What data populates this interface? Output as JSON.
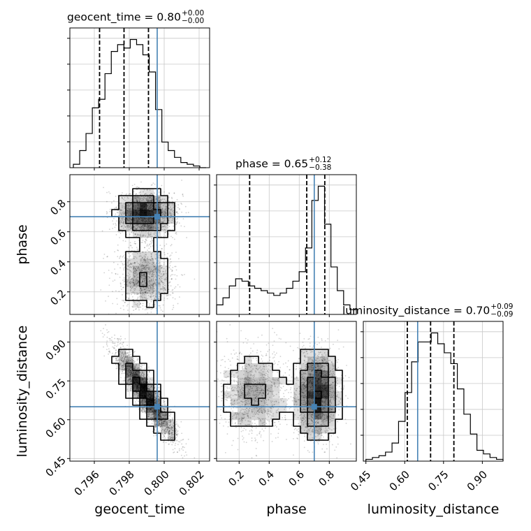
{
  "chart_data": {
    "type": "corner",
    "parameters": [
      "geocent_time",
      "phase",
      "luminosity_distance"
    ],
    "truth": {
      "geocent_time": 0.7996,
      "phase": 0.7,
      "luminosity_distance": 0.65
    },
    "ranges": {
      "geocent_time": [
        0.7946,
        0.8026
      ],
      "phase": [
        0.05,
        0.98
      ],
      "luminosity_distance": [
        0.44,
        0.98
      ]
    },
    "ticks": {
      "geocent_time": [
        0.796,
        0.798,
        0.8,
        0.802
      ],
      "phase": [
        0.2,
        0.4,
        0.6,
        0.8
      ],
      "luminosity_distance": [
        0.45,
        0.6,
        0.75,
        0.9
      ]
    },
    "tick_labels": {
      "geocent_time": [
        "0.796",
        "0.798",
        "0.800",
        "0.802"
      ],
      "phase": [
        "0.2",
        "0.4",
        "0.6",
        "0.8"
      ],
      "luminosity_distance": [
        "0.45",
        "0.60",
        "0.75",
        "0.90"
      ]
    },
    "axis_labels": {
      "geocent_time": "geocent_time",
      "phase": "phase",
      "luminosity_distance": "luminosity_distance"
    },
    "titles": [
      {
        "param": "geocent_time",
        "label": "geocent_time = 0.80",
        "plus": "+0.00",
        "minus": "−0.00"
      },
      {
        "param": "phase",
        "label": "phase = 0.65",
        "plus": "+0.12",
        "minus": "−0.38"
      },
      {
        "param": "luminosity_distance",
        "label": "luminosity_distance = 0.70",
        "plus": "+0.09",
        "minus": "−0.09"
      }
    ],
    "quantiles": {
      "geocent_time": [
        0.7963,
        0.7977,
        0.7991
      ],
      "phase": [
        0.27,
        0.65,
        0.77
      ],
      "luminosity_distance": [
        0.61,
        0.7,
        0.79
      ]
    },
    "histograms": {
      "geocent_time": {
        "edges_min": 0.7948,
        "edges_max": 0.8024,
        "counts": [
          2,
          10,
          20,
          35,
          40,
          55,
          68,
          72,
          70,
          75,
          72,
          66,
          56,
          34,
          15,
          10,
          6,
          3,
          2,
          1,
          0
        ]
      },
      "phase": {
        "edges_min": 0.05,
        "edges_max": 0.98,
        "counts": [
          4,
          7,
          12,
          15,
          14,
          12,
          11,
          10,
          9,
          8,
          9,
          11,
          14,
          18,
          28,
          48,
          54,
          38,
          20,
          10,
          4,
          2
        ]
      },
      "luminosity_distance": {
        "edges_min": 0.45,
        "edges_max": 0.98,
        "counts": [
          1,
          2,
          3,
          5,
          10,
          22,
          38,
          55,
          66,
          66,
          71,
          65,
          60,
          54,
          40,
          26,
          15,
          6,
          4,
          2,
          1
        ]
      }
    },
    "series": [
      {
        "x": "geocent_time",
        "y": "phase",
        "relation": "bimodal-phase"
      },
      {
        "x": "geocent_time",
        "y": "luminosity_distance",
        "relation": "anti-correlated"
      },
      {
        "x": "phase",
        "y": "luminosity_distance",
        "relation": "bimodal-phase"
      }
    ],
    "colors": {
      "truth": "#4682b4",
      "hist": "#000000",
      "grid": "#c8c8c8",
      "points": "#000000"
    },
    "grid": true
  }
}
